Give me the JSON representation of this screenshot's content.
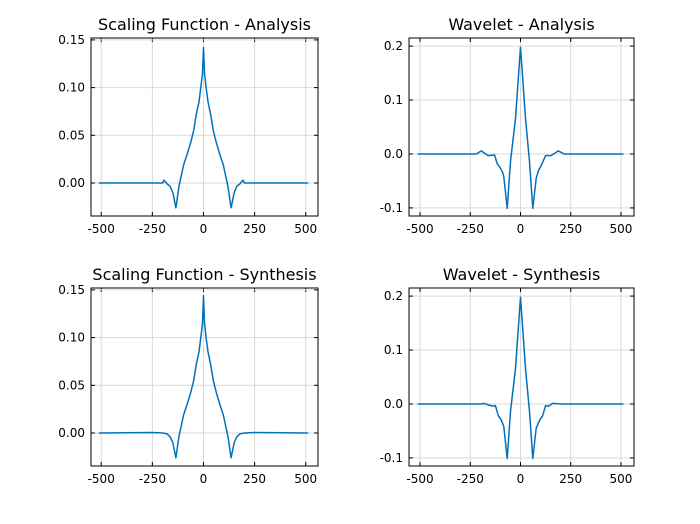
{
  "chart_data": [
    {
      "type": "line",
      "title": "Scaling Function - Analysis",
      "xlim": [
        -550,
        560
      ],
      "ylim": [
        -0.0346,
        0.152
      ],
      "xticks": [
        -500,
        -250,
        0,
        250,
        500
      ],
      "xtick_labels": [
        "-500",
        "-250",
        "0",
        "250",
        "500"
      ],
      "yticks": [
        0,
        0.05,
        0.1,
        0.15
      ],
      "ytick_labels": [
        "0.00",
        "0.05",
        "0.10",
        "0.15"
      ],
      "grid": true,
      "color": "#0072BD",
      "x": [
        -512,
        -200,
        -193,
        -178,
        -163,
        -150,
        -135,
        -120,
        -97,
        -80,
        -63,
        -48,
        -35,
        -22,
        -13,
        -5,
        0,
        5,
        13,
        22,
        35,
        48,
        63,
        80,
        97,
        120,
        135,
        150,
        163,
        178,
        193,
        200,
        512
      ],
      "y": [
        0,
        0,
        0.003,
        -0.001,
        -0.0035,
        -0.01,
        -0.026,
        -0.004,
        0.019,
        0.03,
        0.042,
        0.055,
        0.072,
        0.085,
        0.1,
        0.115,
        0.142,
        0.115,
        0.1,
        0.085,
        0.072,
        0.055,
        0.042,
        0.03,
        0.019,
        -0.004,
        -0.026,
        -0.01,
        -0.0035,
        -0.001,
        0.003,
        0,
        0
      ]
    },
    {
      "type": "line",
      "title": "Wavelet - Analysis",
      "xlim": [
        -555,
        565
      ],
      "ylim": [
        -0.115,
        0.215
      ],
      "xticks": [
        -500,
        -250,
        0,
        250,
        500
      ],
      "xtick_labels": [
        "-500",
        "-250",
        "0",
        "250",
        "500"
      ],
      "yticks": [
        -0.1,
        0,
        0.1,
        0.2
      ],
      "ytick_labels": [
        "-0.1",
        "0.0",
        "0.1",
        "0.2"
      ],
      "grid": true,
      "color": "#0072BD",
      "x": [
        -512,
        -220,
        -195,
        -162,
        -129,
        -116,
        -104,
        -90,
        -83,
        -66,
        -50,
        -25,
        0,
        25,
        45,
        61,
        78,
        90,
        100,
        125,
        152,
        188,
        218,
        512
      ],
      "y": [
        0,
        0,
        0.0056,
        -0.003,
        -0.002,
        -0.018,
        -0.024,
        -0.033,
        -0.042,
        -0.101,
        -0.014,
        0.066,
        0.198,
        0.066,
        -0.014,
        -0.101,
        -0.045,
        -0.03,
        -0.024,
        -0.003,
        -0.003,
        0.0056,
        0,
        0
      ]
    },
    {
      "type": "line",
      "title": "Scaling Function - Synthesis",
      "xlim": [
        -550,
        560
      ],
      "ylim": [
        -0.0346,
        0.152
      ],
      "xticks": [
        -500,
        -250,
        0,
        250,
        500
      ],
      "xtick_labels": [
        "-500",
        "-250",
        "0",
        "250",
        "500"
      ],
      "yticks": [
        0,
        0.05,
        0.1,
        0.15
      ],
      "ytick_labels": [
        "0.00",
        "0.05",
        "0.10",
        "0.15"
      ],
      "grid": true,
      "color": "#0072BD",
      "x": [
        -512,
        -250,
        -200,
        -178,
        -163,
        -150,
        -135,
        -120,
        -97,
        -80,
        -63,
        -48,
        -35,
        -22,
        -13,
        -5,
        0,
        5,
        13,
        22,
        35,
        48,
        63,
        80,
        97,
        120,
        135,
        150,
        163,
        178,
        200,
        250,
        512
      ],
      "y": [
        0,
        0.0005,
        0,
        -0.001,
        -0.004,
        -0.01,
        -0.026,
        -0.004,
        0.019,
        0.03,
        0.042,
        0.055,
        0.072,
        0.085,
        0.1,
        0.115,
        0.144,
        0.115,
        0.1,
        0.085,
        0.072,
        0.055,
        0.042,
        0.03,
        0.019,
        -0.004,
        -0.026,
        -0.01,
        -0.004,
        -0.001,
        0,
        0.0005,
        0
      ]
    },
    {
      "type": "line",
      "title": "Wavelet - Synthesis",
      "xlim": [
        -555,
        565
      ],
      "ylim": [
        -0.115,
        0.215
      ],
      "xticks": [
        -500,
        -250,
        0,
        250,
        500
      ],
      "xtick_labels": [
        "-500",
        "-250",
        "0",
        "250",
        "500"
      ],
      "yticks": [
        -0.1,
        0,
        0.1,
        0.2
      ],
      "ytick_labels": [
        "-0.1",
        "0.0",
        "0.1",
        "0.2"
      ],
      "grid": true,
      "color": "#0072BD",
      "x": [
        -512,
        -200,
        -180,
        -160,
        -135,
        -125,
        -110,
        -95,
        -83,
        -66,
        -50,
        -25,
        0,
        25,
        45,
        61,
        78,
        95,
        110,
        125,
        140,
        160,
        200,
        512
      ],
      "y": [
        0,
        0,
        0.001,
        -0.002,
        -0.004,
        -0.003,
        -0.022,
        -0.03,
        -0.042,
        -0.101,
        -0.014,
        0.066,
        0.198,
        0.066,
        -0.014,
        -0.101,
        -0.045,
        -0.03,
        -0.022,
        -0.003,
        -0.004,
        0.001,
        0,
        0
      ]
    }
  ]
}
